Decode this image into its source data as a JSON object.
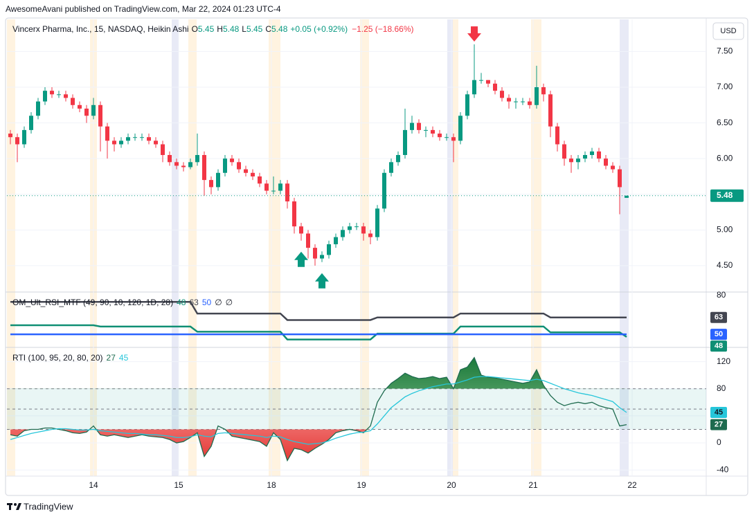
{
  "header": {
    "publisher": "AwesomeAvani published on TradingView.com, Mar 22, 2024 01:23 UTC-4",
    "brand": "TradingView"
  },
  "chart_data": [
    {
      "type": "candlestick",
      "title": "Vincerx Pharma, Inc., 15, NASDAQ, Heikin Ashi",
      "quote": [
        "O",
        "5.45",
        "H",
        "5.48",
        "L",
        "5.45",
        "C",
        "5.48"
      ],
      "change": "+0.05 (+0.92%)",
      "total_change": "−1.25 (−18.66%)",
      "currency": "USD",
      "up_color": "#089981",
      "down_color": "#f23645",
      "grid": true,
      "open": [
        6.35,
        6.3,
        6.2,
        6.4,
        6.6,
        6.8,
        6.95,
        6.9,
        6.9,
        6.85,
        6.75,
        6.7,
        6.6,
        6.75,
        6.45,
        6.25,
        6.2,
        6.25,
        6.3,
        6.3,
        6.3,
        6.25,
        6.2,
        6.05,
        5.95,
        5.9,
        5.88,
        5.95,
        6.05,
        5.7,
        5.6,
        5.8,
        6.0,
        5.95,
        5.85,
        5.8,
        5.75,
        5.65,
        5.55,
        5.55,
        5.65,
        5.4,
        5.05,
        4.95,
        4.75,
        4.6,
        4.65,
        4.8,
        4.9,
        5.0,
        5.05,
        5.05,
        4.95,
        4.9,
        5.3,
        5.8,
        5.95,
        6.05,
        6.4,
        6.5,
        6.4,
        6.4,
        6.35,
        6.3,
        6.3,
        6.25,
        6.6,
        6.9,
        7.1,
        7.1,
        7.05,
        6.95,
        6.85,
        6.8,
        6.8,
        6.8,
        6.75,
        7.0,
        6.9,
        6.45,
        6.2,
        6.0,
        5.95,
        6.0,
        6.05,
        6.1,
        6.0,
        5.9,
        5.85,
        5.45
      ],
      "high": [
        6.4,
        6.35,
        6.45,
        6.65,
        6.85,
        7.0,
        7.0,
        6.95,
        6.95,
        6.9,
        6.8,
        6.75,
        6.85,
        6.8,
        6.5,
        6.3,
        6.3,
        6.35,
        6.35,
        6.35,
        6.35,
        6.3,
        6.25,
        6.1,
        6.0,
        5.95,
        6.0,
        6.35,
        6.1,
        5.75,
        5.85,
        6.05,
        6.05,
        6.0,
        5.9,
        5.85,
        5.8,
        5.7,
        5.75,
        5.7,
        5.7,
        5.45,
        5.1,
        5.0,
        4.8,
        4.7,
        4.85,
        4.95,
        5.05,
        5.1,
        5.1,
        5.1,
        5.0,
        5.35,
        5.85,
        6.0,
        6.1,
        6.7,
        6.6,
        6.55,
        6.45,
        6.45,
        6.4,
        6.35,
        6.35,
        6.65,
        6.95,
        7.6,
        7.2,
        7.1,
        7.1,
        7.0,
        6.9,
        6.85,
        6.85,
        6.85,
        7.3,
        7.05,
        6.95,
        6.5,
        6.25,
        6.05,
        6.05,
        6.1,
        6.15,
        6.15,
        6.05,
        5.95,
        5.9,
        5.48
      ],
      "low": [
        6.2,
        5.95,
        6.15,
        6.35,
        6.55,
        6.75,
        6.85,
        6.85,
        6.8,
        6.7,
        6.65,
        6.5,
        6.55,
        6.1,
        6.0,
        6.1,
        6.15,
        6.2,
        6.25,
        6.25,
        6.2,
        6.15,
        5.95,
        5.9,
        5.85,
        5.82,
        5.85,
        5.9,
        5.48,
        5.5,
        5.55,
        5.75,
        5.9,
        5.8,
        5.75,
        5.7,
        5.6,
        5.5,
        5.5,
        5.5,
        5.3,
        4.95,
        4.85,
        4.6,
        4.5,
        4.55,
        4.6,
        4.75,
        4.85,
        4.95,
        5.0,
        4.85,
        4.8,
        4.85,
        5.25,
        5.75,
        5.9,
        6.0,
        6.35,
        6.35,
        6.3,
        6.3,
        6.25,
        6.25,
        5.95,
        6.2,
        6.55,
        6.85,
        7.05,
        7.0,
        6.9,
        6.8,
        6.7,
        6.7,
        6.75,
        6.7,
        6.7,
        6.8,
        6.3,
        6.1,
        5.9,
        5.8,
        5.85,
        5.95,
        6.0,
        5.95,
        5.85,
        5.8,
        5.22,
        5.45
      ],
      "close": [
        6.3,
        6.2,
        6.4,
        6.6,
        6.8,
        6.95,
        6.9,
        6.9,
        6.85,
        6.75,
        6.7,
        6.6,
        6.75,
        6.45,
        6.25,
        6.2,
        6.25,
        6.3,
        6.3,
        6.3,
        6.25,
        6.2,
        6.05,
        5.95,
        5.9,
        5.88,
        5.95,
        6.05,
        5.7,
        5.6,
        5.8,
        6.0,
        5.95,
        5.85,
        5.8,
        5.75,
        5.65,
        5.55,
        5.55,
        5.65,
        5.4,
        5.05,
        4.95,
        4.75,
        4.6,
        4.65,
        4.8,
        4.9,
        5.0,
        5.05,
        5.05,
        4.95,
        4.9,
        5.3,
        5.8,
        5.95,
        6.05,
        6.4,
        6.5,
        6.4,
        6.4,
        6.35,
        6.3,
        6.3,
        6.25,
        6.6,
        6.9,
        7.1,
        7.1,
        7.05,
        6.95,
        6.85,
        6.8,
        6.8,
        6.8,
        6.75,
        7.0,
        6.9,
        6.45,
        6.2,
        6.0,
        5.95,
        6.0,
        6.05,
        6.1,
        6.0,
        5.9,
        5.85,
        5.6,
        5.48
      ],
      "last_price": 5.48,
      "signals": {
        "up": [
          42,
          45
        ],
        "down": [
          67
        ]
      },
      "xlim": [
        0,
        101
      ],
      "xticks": [
        {
          "value": 12.5,
          "label": "14"
        },
        {
          "value": 24.8,
          "label": "15"
        },
        {
          "value": 38.2,
          "label": "18"
        },
        {
          "value": 51.2,
          "label": "19"
        },
        {
          "value": 64.2,
          "label": "20"
        },
        {
          "value": 76,
          "label": "21"
        },
        {
          "value": 90.3,
          "label": "22"
        }
      ],
      "ylim": [
        4.15,
        7.95
      ],
      "yticks": [
        {
          "value": 4.5,
          "label": "4.50"
        },
        {
          "value": 5,
          "label": "5.00"
        },
        {
          "value": 5.5,
          "label": "5.50"
        },
        {
          "value": 6,
          "label": "6.00"
        },
        {
          "value": 6.5,
          "label": "6.50"
        },
        {
          "value": 7,
          "label": "7.00"
        },
        {
          "value": 7.5,
          "label": "7.50"
        }
      ]
    },
    {
      "type": "line",
      "title": "OM_Ult_RSI_MTF (49, 90, 10, 120, 1D, 28)",
      "legend_extra": [
        "∅",
        "∅"
      ],
      "series": [
        {
          "color": "#0f8f74",
          "values": [
            57,
            57,
            57,
            57,
            57,
            57,
            57,
            57,
            57,
            57,
            57,
            57,
            57,
            56,
            56,
            56,
            56,
            56,
            56,
            56,
            56,
            56,
            56,
            56,
            56,
            56,
            56,
            52,
            52,
            52,
            52,
            52,
            52,
            52,
            52,
            52,
            52,
            52,
            52,
            52,
            46,
            46,
            46,
            46,
            46,
            46,
            46,
            46,
            46,
            46,
            46,
            46,
            46,
            50.5,
            50.5,
            50.5,
            50.5,
            50.5,
            50.5,
            50.5,
            50.5,
            50.5,
            50.5,
            50.5,
            50.5,
            56,
            56,
            56,
            56,
            56,
            56,
            56,
            56,
            56,
            56,
            56,
            56,
            56,
            51.5,
            51.5,
            51.5,
            51.5,
            51.5,
            51.5,
            51.5,
            51.5,
            51.5,
            51.5,
            51.5,
            48
          ]
        },
        {
          "color": "#434651",
          "values": [
            75,
            75,
            75,
            75,
            75,
            75,
            75,
            75,
            75,
            75,
            75,
            75,
            75,
            75,
            75,
            75,
            75,
            75,
            75,
            75,
            75,
            75,
            75,
            75,
            75,
            75,
            75,
            66,
            66,
            66,
            66,
            66,
            66,
            66,
            66,
            66,
            66,
            66,
            66,
            66,
            61,
            61,
            61,
            61,
            61,
            61,
            61,
            61,
            61,
            61,
            61,
            61,
            61,
            63,
            63,
            63,
            63,
            63,
            63,
            63,
            63,
            63,
            63,
            63,
            63,
            66,
            66,
            66,
            66,
            66,
            66,
            66,
            66,
            66,
            66,
            66,
            66,
            66,
            63,
            63,
            63,
            63,
            63,
            63,
            63,
            63,
            63,
            63,
            63,
            63
          ]
        },
        {
          "color": "#2962ff",
          "values": [
            50,
            50,
            50,
            50,
            50,
            50,
            50,
            50,
            50,
            50,
            50,
            50,
            50,
            50,
            50,
            50,
            50,
            50,
            50,
            50,
            50,
            50,
            50,
            50,
            50,
            50,
            50,
            50,
            50,
            50,
            50,
            50,
            50,
            50,
            50,
            50,
            50,
            50,
            50,
            50,
            50,
            50,
            50,
            50,
            50,
            50,
            50,
            50,
            50,
            50,
            50,
            50,
            50,
            50,
            50,
            50,
            50,
            50,
            50,
            50,
            50,
            50,
            50,
            50,
            50,
            50,
            50,
            50,
            50,
            50,
            50,
            50,
            50,
            50,
            50,
            50,
            50,
            50,
            50,
            50,
            50,
            50,
            50,
            50,
            50,
            50,
            50,
            50,
            50,
            50
          ]
        }
      ],
      "ylim": [
        41,
        81.5
      ],
      "yticks": [
        80
      ]
    },
    {
      "type": "line",
      "title": "RTI (100, 95, 20, 80, 20)",
      "levels": [
        80,
        50,
        20
      ],
      "series": [
        {
          "color": "#1e6b4f",
          "values": [
            12,
            10,
            18,
            20,
            20,
            22,
            22,
            20,
            18,
            15,
            14,
            16,
            25,
            12,
            10,
            12,
            10,
            8,
            10,
            12,
            10,
            9,
            8,
            5,
            0,
            2,
            8,
            15,
            -20,
            -5,
            25,
            20,
            10,
            8,
            6,
            4,
            2,
            -5,
            15,
            5,
            -26,
            -8,
            -10,
            -15,
            -8,
            -2,
            5,
            15,
            18,
            20,
            18,
            15,
            25,
            60,
            77,
            88,
            95,
            103,
            98,
            95,
            96,
            98,
            95,
            97,
            80,
            108,
            112,
            126,
            100,
            97,
            96,
            94,
            92,
            90,
            88,
            90,
            108,
            85,
            70,
            60,
            55,
            58,
            60,
            58,
            60,
            55,
            52,
            50,
            25,
            27
          ]
        },
        {
          "color": "#26c6da",
          "values": [
            5,
            8,
            11,
            14,
            16,
            18,
            20,
            21,
            21,
            20,
            19,
            19,
            20,
            18,
            17,
            16,
            15,
            14,
            14,
            13,
            12,
            12,
            11,
            10,
            8,
            8,
            9,
            12,
            10,
            9,
            14,
            15,
            14,
            13,
            12,
            11,
            10,
            8,
            10,
            9,
            5,
            2,
            0,
            -2,
            -1,
            0,
            3,
            7,
            10,
            13,
            15,
            16,
            18,
            28,
            40,
            52,
            60,
            68,
            73,
            77,
            80,
            83,
            85,
            87,
            87,
            90,
            93,
            97,
            98,
            98,
            97,
            96,
            95,
            94,
            93,
            92,
            94,
            92,
            88,
            84,
            80,
            77,
            74,
            72,
            70,
            67,
            64,
            61,
            52,
            45
          ]
        }
      ],
      "ylim": [
        -49,
        139
      ],
      "yticks": [
        -40,
        0,
        40,
        80,
        120
      ]
    }
  ]
}
